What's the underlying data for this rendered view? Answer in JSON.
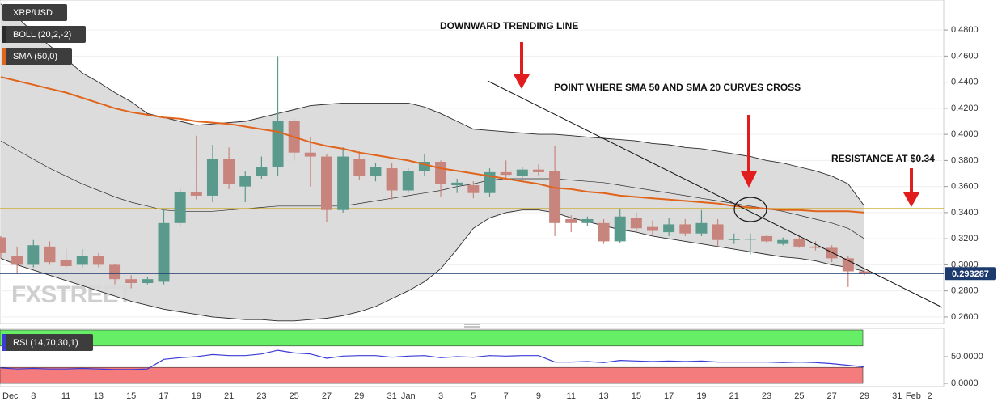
{
  "chart_data": [
    {
      "type": "candlestick",
      "categories": [
        "Dec",
        null,
        "8",
        null,
        "11",
        null,
        "13",
        null,
        "15",
        null,
        "17",
        null,
        "19",
        null,
        "21",
        null,
        "23",
        null,
        "25",
        null,
        "27",
        null,
        "29",
        null,
        "31",
        "Jan",
        null,
        "3",
        null,
        "5",
        null,
        "7",
        null,
        "9",
        null,
        "11",
        null,
        "13",
        null,
        "15",
        null,
        "17",
        null,
        "19",
        null,
        "21",
        null,
        "23",
        null,
        "25",
        null,
        "27",
        null,
        "29",
        null,
        "31",
        "Feb",
        "2"
      ],
      "series": [
        {
          "name": "XRP/USD",
          "up_color": "#5a9a8c",
          "down_color": "#c8857d",
          "open": [
            0.321,
            0.307,
            0.3,
            0.314,
            0.304,
            0.3,
            0.307,
            0.3,
            0.289,
            0.286,
            0.287,
            0.332,
            0.356,
            0.353,
            0.381,
            0.36,
            0.368,
            0.375,
            0.41,
            0.386,
            0.383,
            0.342,
            0.381,
            0.368,
            0.374,
            0.357,
            0.372,
            0.379,
            0.361,
            0.361,
            0.355,
            0.371,
            0.368,
            0.373,
            0.372,
            0.335,
            0.332,
            0.332,
            0.318,
            0.336,
            0.329,
            0.325,
            0.331,
            0.324,
            0.331,
            0.319,
            0.32,
            0.322,
            0.316,
            0.32,
            0.314,
            0.313,
            0.305,
            0.295,
            null,
            null,
            null,
            null
          ],
          "high": [
            0.322,
            0.314,
            0.319,
            0.318,
            0.312,
            0.312,
            0.309,
            0.301,
            0.292,
            0.291,
            0.343,
            0.358,
            0.399,
            0.392,
            0.39,
            0.372,
            0.383,
            0.46,
            0.412,
            0.398,
            0.385,
            0.39,
            0.387,
            0.378,
            0.378,
            0.374,
            0.385,
            0.38,
            0.366,
            0.364,
            0.374,
            0.38,
            0.375,
            0.377,
            0.391,
            0.338,
            0.337,
            0.335,
            0.343,
            0.34,
            0.334,
            0.336,
            0.335,
            0.342,
            0.335,
            0.324,
            0.324,
            0.323,
            0.321,
            0.322,
            0.318,
            0.315,
            0.307,
            0.297,
            null,
            null,
            null,
            null
          ],
          "low": [
            0.305,
            0.293,
            0.298,
            0.3,
            0.297,
            0.298,
            0.298,
            0.285,
            0.282,
            0.285,
            0.285,
            0.33,
            0.35,
            0.348,
            0.358,
            0.348,
            0.366,
            0.368,
            0.38,
            0.36,
            0.333,
            0.34,
            0.365,
            0.364,
            0.35,
            0.355,
            0.368,
            0.352,
            0.355,
            0.351,
            0.352,
            0.365,
            0.366,
            0.368,
            0.322,
            0.325,
            0.33,
            0.316,
            0.317,
            0.325,
            0.322,
            0.322,
            0.322,
            0.322,
            0.314,
            0.316,
            0.308,
            0.317,
            0.315,
            0.313,
            0.311,
            0.302,
            0.283,
            0.292,
            null,
            null,
            null,
            null
          ],
          "close": [
            0.309,
            0.3,
            0.315,
            0.302,
            0.299,
            0.307,
            0.3,
            0.289,
            0.286,
            0.289,
            0.332,
            0.356,
            0.353,
            0.381,
            0.362,
            0.368,
            0.375,
            0.41,
            0.386,
            0.383,
            0.342,
            0.383,
            0.368,
            0.375,
            0.357,
            0.372,
            0.379,
            0.362,
            0.363,
            0.355,
            0.371,
            0.369,
            0.373,
            0.371,
            0.332,
            0.332,
            0.335,
            0.318,
            0.337,
            0.328,
            0.326,
            0.331,
            0.324,
            0.332,
            0.319,
            0.32,
            0.32,
            0.318,
            0.319,
            0.314,
            0.313,
            0.305,
            0.295,
            0.293,
            null,
            null,
            null,
            null
          ]
        },
        {
          "name": "BOLL (20,2,-2)",
          "color": "#2b2b2b",
          "fill": "#d8d8d8",
          "upper": [
            0.5,
            0.49,
            0.478,
            0.468,
            0.458,
            0.447,
            0.44,
            0.432,
            0.425,
            0.416,
            0.413,
            0.41,
            0.407,
            0.408,
            0.409,
            0.41,
            0.413,
            0.416,
            0.419,
            0.422,
            0.423,
            0.424,
            0.424,
            0.424,
            0.424,
            0.424,
            0.421,
            0.416,
            0.41,
            0.404,
            0.403,
            0.402,
            0.401,
            0.4,
            0.4,
            0.399,
            0.398,
            0.397,
            0.396,
            0.395,
            0.393,
            0.392,
            0.39,
            0.389,
            0.387,
            0.385,
            0.383,
            0.38,
            0.378,
            0.375,
            0.372,
            0.368,
            0.362,
            0.345,
            null,
            null,
            null,
            null
          ],
          "middle": [
            0.395,
            0.388,
            0.381,
            0.374,
            0.368,
            0.362,
            0.357,
            0.352,
            0.348,
            0.345,
            0.342,
            0.341,
            0.341,
            0.341,
            0.342,
            0.343,
            0.344,
            0.345,
            0.345,
            0.345,
            0.345,
            0.345,
            0.347,
            0.349,
            0.351,
            0.353,
            0.355,
            0.357,
            0.36,
            0.362,
            0.365,
            0.366,
            0.366,
            0.366,
            0.366,
            0.365,
            0.364,
            0.363,
            0.361,
            0.359,
            0.357,
            0.355,
            0.353,
            0.351,
            0.349,
            0.347,
            0.345,
            0.343,
            0.341,
            0.338,
            0.335,
            0.332,
            0.328,
            0.32,
            null,
            null,
            null,
            null
          ],
          "lower": [
            0.305,
            0.3,
            0.296,
            0.292,
            0.288,
            0.284,
            0.28,
            0.276,
            0.272,
            0.269,
            0.266,
            0.264,
            0.262,
            0.26,
            0.259,
            0.258,
            0.258,
            0.257,
            0.257,
            0.258,
            0.259,
            0.261,
            0.264,
            0.268,
            0.274,
            0.28,
            0.287,
            0.297,
            0.312,
            0.328,
            0.336,
            0.34,
            0.342,
            0.342,
            0.34,
            0.336,
            0.333,
            0.33,
            0.327,
            0.325,
            0.322,
            0.32,
            0.318,
            0.316,
            0.314,
            0.312,
            0.31,
            0.308,
            0.306,
            0.305,
            0.303,
            0.3,
            0.298,
            0.295,
            null,
            null,
            null,
            null
          ]
        },
        {
          "name": "SMA (50,0)",
          "color": "#e0641b",
          "values": [
            0.444,
            0.441,
            0.438,
            0.435,
            0.432,
            0.428,
            0.424,
            0.42,
            0.417,
            0.415,
            0.413,
            0.412,
            0.41,
            0.409,
            0.408,
            0.406,
            0.404,
            0.402,
            0.398,
            0.394,
            0.391,
            0.389,
            0.386,
            0.384,
            0.382,
            0.38,
            0.377,
            0.374,
            0.372,
            0.37,
            0.368,
            0.366,
            0.364,
            0.362,
            0.359,
            0.358,
            0.356,
            0.355,
            0.353,
            0.352,
            0.351,
            0.35,
            0.349,
            0.348,
            0.347,
            0.345,
            0.344,
            0.343,
            0.342,
            0.342,
            0.341,
            0.341,
            0.341,
            0.34,
            null,
            null,
            null,
            null
          ]
        }
      ],
      "ylim": [
        0.255,
        0.503
      ],
      "yticks": [
        {
          "value": 0.26,
          "label": "0.2600"
        },
        {
          "value": 0.28,
          "label": "0.2800"
        },
        {
          "value": 0.3,
          "label": "0.3000"
        },
        {
          "value": 0.32,
          "label": "0.3200"
        },
        {
          "value": 0.34,
          "label": "0.3400"
        },
        {
          "value": 0.36,
          "label": "0.3600"
        },
        {
          "value": 0.38,
          "label": "0.3800"
        },
        {
          "value": 0.4,
          "label": "0.4000"
        },
        {
          "value": 0.42,
          "label": "0.4200"
        },
        {
          "value": 0.44,
          "label": "0.4400"
        },
        {
          "value": 0.46,
          "label": "0.4600"
        },
        {
          "value": 0.48,
          "label": "0.4800"
        }
      ],
      "grid": true,
      "last_price": 0.293287,
      "last_price_color": "#1c3a6e",
      "resistance_level": 0.343,
      "resistance_color": "#c8a415",
      "annotations": [
        "DOWNWARD TRENDING LINE",
        "POINT WHERE SMA 50 AND SMA 20 CURVES CROSS",
        "RESISTANCE AT $0.34"
      ],
      "watermark": "FXSTREET"
    },
    {
      "type": "line",
      "series": [
        {
          "name": "RSI (14,70,30,1)",
          "color": "#3b3bd6",
          "values": [
            29,
            27,
            28,
            27,
            27,
            28,
            27,
            26,
            26,
            27,
            45,
            48,
            50,
            54,
            52,
            52,
            55,
            62,
            57,
            55,
            47,
            51,
            52,
            52,
            49,
            51,
            52,
            48,
            50,
            49,
            52,
            51,
            52,
            52,
            40,
            40,
            41,
            39,
            43,
            42,
            41,
            42,
            41,
            42,
            40,
            40,
            40,
            40,
            39,
            40,
            39,
            37,
            34,
            31,
            null,
            null,
            null,
            null
          ]
        }
      ],
      "ylim": [
        -6,
        103
      ],
      "yticks": [
        {
          "value": 0,
          "label": "0.0000"
        },
        {
          "value": 50,
          "label": "50.0000"
        }
      ],
      "zones": [
        {
          "from": 70,
          "to": 100,
          "color": "#66ee66"
        },
        {
          "from": 0,
          "to": 30,
          "color": "#f47c7c"
        }
      ]
    }
  ]
}
